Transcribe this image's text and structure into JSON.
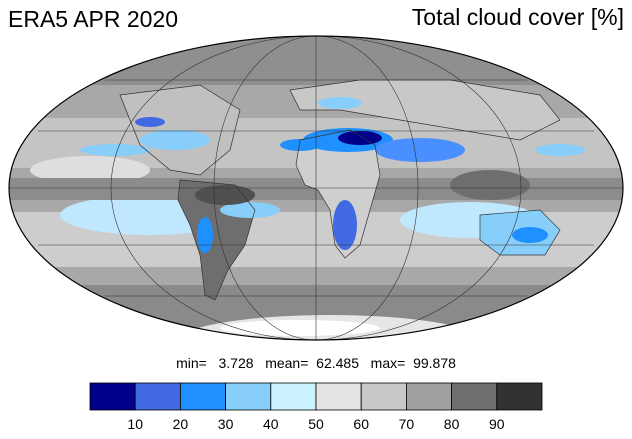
{
  "header": {
    "title_left": "ERA5 APR 2020",
    "title_right": "Total cloud cover [%]"
  },
  "stats": {
    "text": "min=   3.728   mean=  62.485   max=  99.878"
  },
  "colorbar": {
    "colors": [
      "#00008b",
      "#4169e1",
      "#1e90ff",
      "#87cefa",
      "#cbf3ff",
      "#e4e4e4",
      "#c8c8c8",
      "#a0a0a0",
      "#6e6e6e",
      "#323232"
    ],
    "tick_labels": [
      "10",
      "20",
      "30",
      "40",
      "50",
      "60",
      "70",
      "80",
      "90"
    ]
  },
  "map": {
    "projection": "mollweide",
    "ocean_gray": "#a8a8a8",
    "continent_outline": "#333333"
  }
}
